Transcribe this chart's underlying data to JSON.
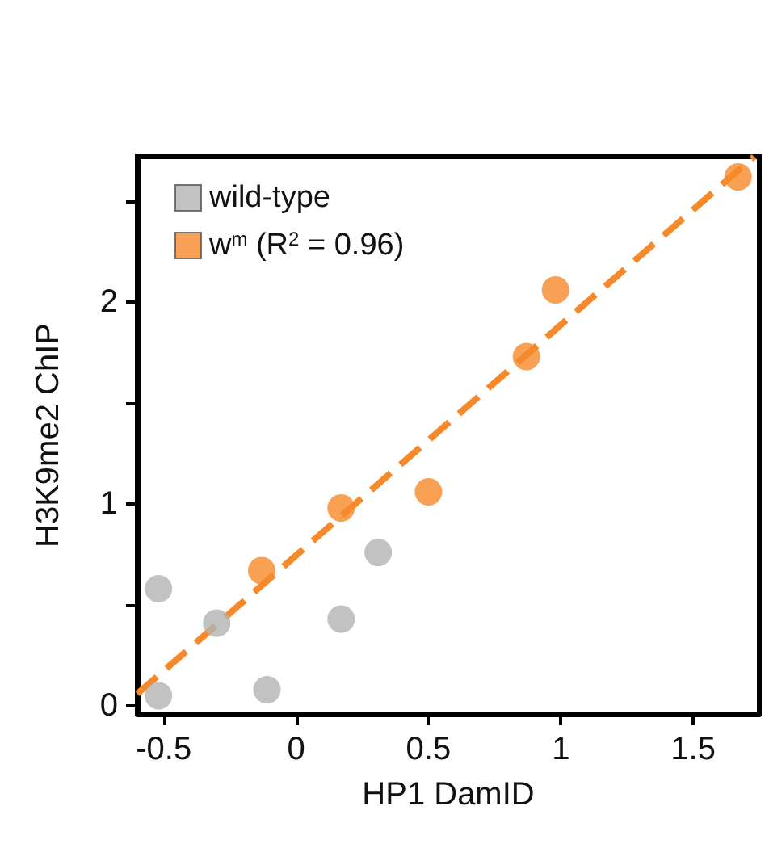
{
  "chart_data": {
    "type": "scatter",
    "xlabel": "HP1 DamID",
    "ylabel": "H3K9me2 ChIP",
    "series": [
      {
        "name": "wild-type",
        "color": "#b3b3b3",
        "x": [
          -0.52,
          -0.3,
          -0.52,
          -0.11,
          0.17,
          0.31
        ],
        "values": [
          0.58,
          0.41,
          0.05,
          0.08,
          0.43,
          0.76
        ]
      },
      {
        "name": "w$^{m}$ (R$^{2}$ = 0.96)",
        "color": "#f68a2a",
        "x": [
          -0.13,
          0.17,
          0.5,
          0.87,
          0.98,
          1.67
        ],
        "values": [
          0.67,
          0.98,
          1.06,
          1.73,
          2.06,
          2.62
        ]
      },
      {
        "type": "line",
        "color": "#f68a2a",
        "line_style": "dashed",
        "marker": "none",
        "x": [
          -0.6,
          1.73
        ],
        "values": [
          0.06,
          2.72
        ]
      }
    ],
    "xlim": [
      -0.6,
      1.75
    ],
    "ylim": [
      -0.04,
      2.72
    ],
    "xticks": [
      -0.5,
      0,
      0.5,
      1,
      1.5
    ],
    "yticks": [
      0,
      {
        "value": 0.5,
        "label": null
      },
      1,
      {
        "value": 1.5,
        "label": null
      },
      2,
      {
        "value": 2.5,
        "label": null
      }
    ],
    "marker": "circle",
    "grid": false,
    "legend": "top left"
  }
}
